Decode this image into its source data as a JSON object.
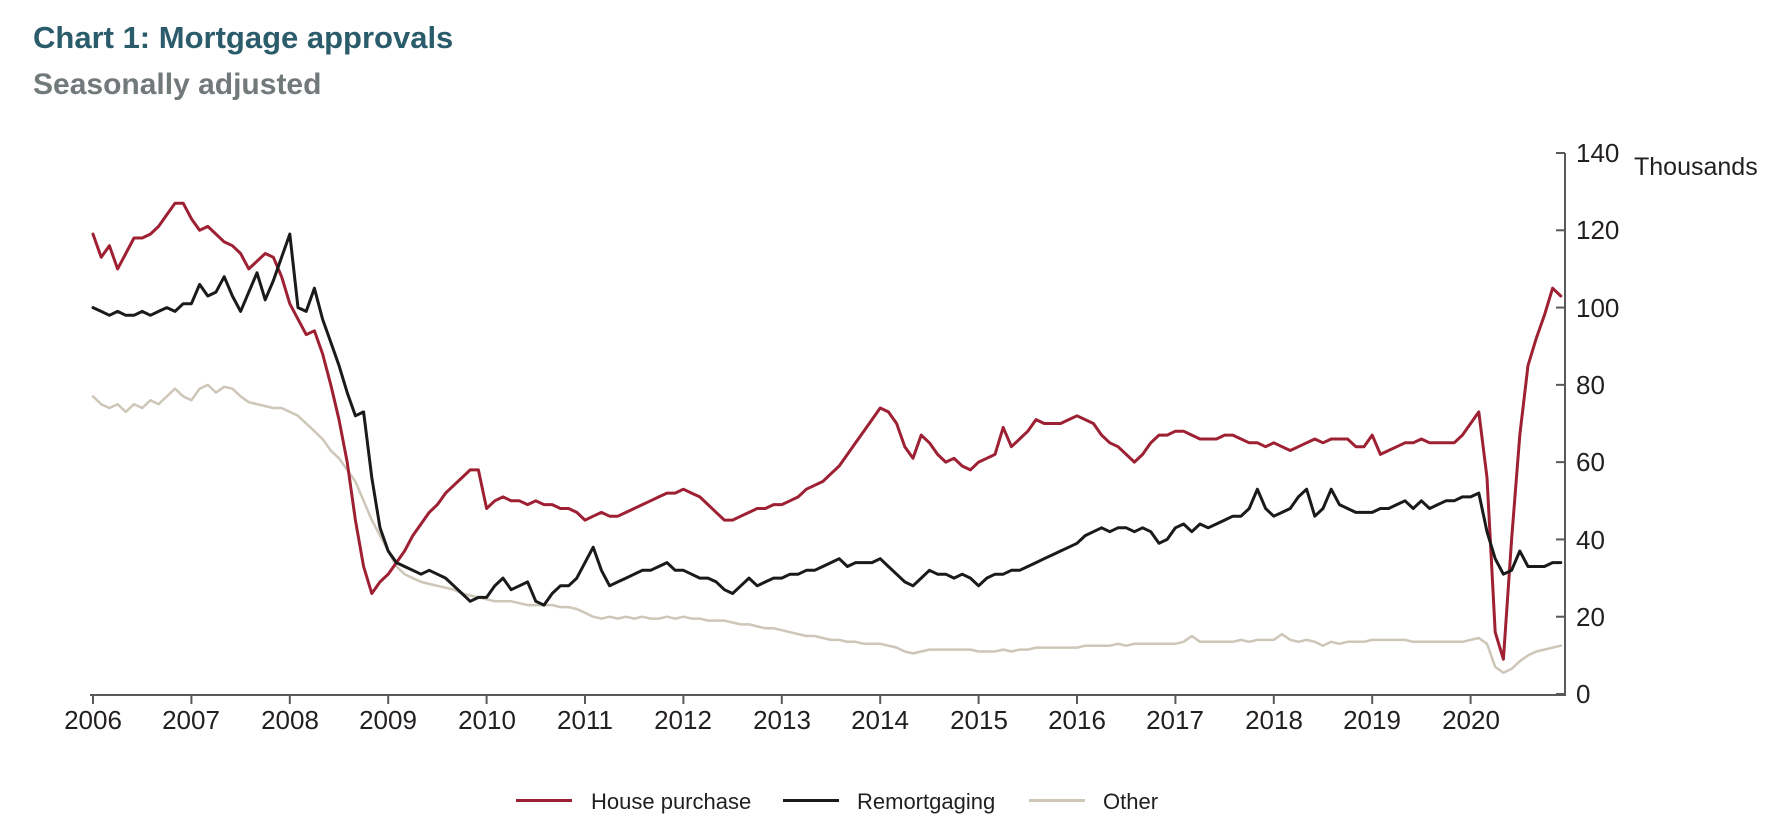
{
  "header": {
    "title": "Chart 1: Mortgage approvals",
    "subtitle": "Seasonally adjusted"
  },
  "chart_data": {
    "type": "line",
    "title": "Chart 1: Mortgage approvals",
    "subtitle": "Seasonally adjusted",
    "unit_label": "Thousands",
    "x_start": "2006-01",
    "x_frequency": "monthly",
    "x_tick_labels": [
      "2006",
      "2007",
      "2008",
      "2009",
      "2010",
      "2011",
      "2012",
      "2013",
      "2014",
      "2015",
      "2016",
      "2017",
      "2018",
      "2019",
      "2020"
    ],
    "y_tick_labels": [
      "0",
      "20",
      "40",
      "60",
      "80",
      "100",
      "120",
      "140"
    ],
    "ylim": [
      0,
      140
    ],
    "grid": false,
    "legend_position": "bottom",
    "axis_color": "#58595b",
    "series": [
      {
        "name": "House purchase",
        "color": "#9e2033",
        "values": [
          119,
          113,
          116,
          110,
          114,
          118,
          118,
          119,
          121,
          124,
          127,
          127,
          123,
          120,
          121,
          119,
          117,
          116,
          114,
          110,
          112,
          114,
          113,
          108,
          101,
          97,
          93,
          94,
          88,
          80,
          71,
          60,
          45,
          33,
          26,
          29,
          31,
          34,
          37,
          41,
          44,
          47,
          49,
          52,
          54,
          56,
          58,
          58,
          48,
          50,
          51,
          50,
          50,
          49,
          50,
          49,
          49,
          48,
          48,
          47,
          45,
          46,
          47,
          46,
          46,
          47,
          48,
          49,
          50,
          51,
          52,
          52,
          53,
          52,
          51,
          49,
          47,
          45,
          45,
          46,
          47,
          48,
          48,
          49,
          49,
          50,
          51,
          53,
          54,
          55,
          57,
          59,
          62,
          65,
          68,
          71,
          74,
          73,
          70,
          64,
          61,
          67,
          65,
          62,
          60,
          61,
          59,
          58,
          60,
          61,
          62,
          69,
          64,
          66,
          68,
          71,
          70,
          70,
          70,
          71,
          72,
          71,
          70,
          67,
          65,
          64,
          62,
          60,
          62,
          65,
          67,
          67,
          68,
          68,
          67,
          66,
          66,
          66,
          67,
          67,
          66,
          65,
          65,
          64,
          65,
          64,
          63,
          64,
          65,
          66,
          65,
          66,
          66,
          66,
          64,
          64,
          67,
          62,
          63,
          64,
          65,
          65,
          66,
          65,
          65,
          65,
          65,
          67,
          70,
          73,
          56,
          16,
          9,
          40,
          67,
          85,
          92,
          98,
          105,
          103
        ]
      },
      {
        "name": "Remortgaging",
        "color": "#1a1a1a",
        "values": [
          100,
          99,
          98,
          99,
          98,
          98,
          99,
          98,
          99,
          100,
          99,
          101,
          101,
          106,
          103,
          104,
          108,
          103,
          99,
          104,
          109,
          102,
          107,
          113,
          119,
          100,
          99,
          105,
          97,
          91,
          85,
          78,
          72,
          73,
          56,
          43,
          37,
          34,
          33,
          32,
          31,
          32,
          31,
          30,
          28,
          26,
          24,
          25,
          25,
          28,
          30,
          27,
          28,
          29,
          24,
          23,
          26,
          28,
          28,
          30,
          34,
          38,
          32,
          28,
          29,
          30,
          31,
          32,
          32,
          33,
          34,
          32,
          32,
          31,
          30,
          30,
          29,
          27,
          26,
          28,
          30,
          28,
          29,
          30,
          30,
          31,
          31,
          32,
          32,
          33,
          34,
          35,
          33,
          34,
          34,
          34,
          35,
          33,
          31,
          29,
          28,
          30,
          32,
          31,
          31,
          30,
          31,
          30,
          28,
          30,
          31,
          31,
          32,
          32,
          33,
          34,
          35,
          36,
          37,
          38,
          39,
          41,
          42,
          43,
          42,
          43,
          43,
          42,
          43,
          42,
          39,
          40,
          43,
          44,
          42,
          44,
          43,
          44,
          45,
          46,
          46,
          48,
          53,
          48,
          46,
          47,
          48,
          51,
          53,
          46,
          48,
          53,
          49,
          48,
          47,
          47,
          47,
          48,
          48,
          49,
          50,
          48,
          50,
          48,
          49,
          50,
          50,
          51,
          51,
          52,
          42,
          35,
          31,
          32,
          37,
          33,
          33,
          33,
          34,
          34
        ]
      },
      {
        "name": "Other",
        "color": "#cdc6b9",
        "values": [
          77,
          75,
          74,
          75,
          73,
          75,
          74,
          76,
          75,
          77,
          79,
          77,
          76,
          79,
          80,
          78,
          79.5,
          79,
          77,
          75.5,
          75,
          74.5,
          74,
          74,
          73,
          72,
          70,
          68,
          66,
          63,
          61,
          58,
          55,
          50,
          45,
          41,
          37,
          33,
          31,
          30,
          29,
          28.5,
          28,
          27.5,
          27,
          26,
          25.5,
          25,
          24.5,
          24,
          24,
          24,
          23.5,
          23,
          23,
          23,
          23,
          22.5,
          22.5,
          22,
          21,
          20,
          19.5,
          20,
          19.5,
          20,
          19.5,
          20,
          19.5,
          19.5,
          20,
          19.5,
          20,
          19.5,
          19.5,
          19,
          19,
          19,
          18.5,
          18,
          18,
          17.5,
          17,
          17,
          16.5,
          16,
          15.5,
          15,
          15,
          14.5,
          14,
          14,
          13.5,
          13.5,
          13,
          13,
          13,
          12.5,
          12,
          11,
          10.5,
          11,
          11.5,
          11.5,
          11.5,
          11.5,
          11.5,
          11.5,
          11,
          11,
          11,
          11.5,
          11,
          11.5,
          11.5,
          12,
          12,
          12,
          12,
          12,
          12,
          12.5,
          12.5,
          12.5,
          12.5,
          13,
          12.5,
          13,
          13,
          13,
          13,
          13,
          13,
          13.5,
          15,
          13.5,
          13.5,
          13.5,
          13.5,
          13.5,
          14,
          13.5,
          14,
          14,
          14,
          15.5,
          14,
          13.5,
          14,
          13.5,
          12.5,
          13.5,
          13,
          13.5,
          13.5,
          13.5,
          14,
          14,
          14,
          14,
          14,
          13.5,
          13.5,
          13.5,
          13.5,
          13.5,
          13.5,
          13.5,
          14,
          14.5,
          13,
          7,
          5.5,
          6.5,
          8.5,
          10,
          11,
          11.5,
          12,
          12.5
        ]
      }
    ]
  }
}
